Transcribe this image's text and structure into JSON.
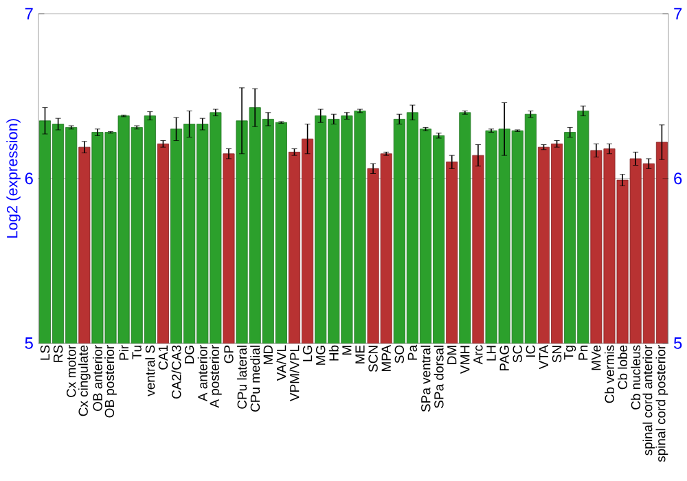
{
  "chart_data": {
    "type": "bar",
    "ylabel": "Log2 (expression)",
    "categories": [
      "LS",
      "RS",
      "Cx motor",
      "Cx cingulate",
      "OB anterior",
      "OB posterior",
      "Pir",
      "Tu",
      "ventral S",
      "CA1",
      "CA2/CA3",
      "DG",
      "A anterior",
      "A posterior",
      "GP",
      "CPu lateral",
      "CPu medial",
      "MD",
      "VA/VL",
      "VPM/VPL",
      "LG",
      "MG",
      "Hb",
      "M",
      "ME",
      "SCN",
      "MPA",
      "SO",
      "Pa",
      "SPa ventral",
      "SPa dorsal",
      "DM",
      "VMH",
      "Arc",
      "LH",
      "PAG",
      "SC",
      "IC",
      "VTA",
      "SN",
      "Tg",
      "Pn",
      "MVe",
      "Cb vermis",
      "Cb lobe",
      "Cb nucleus",
      "spinal cord anterior",
      "spinal cord posterior"
    ],
    "values": [
      6.35,
      6.33,
      6.31,
      6.19,
      6.28,
      6.28,
      6.38,
      6.31,
      6.38,
      6.21,
      6.3,
      6.33,
      6.33,
      6.4,
      6.15,
      6.35,
      6.43,
      6.36,
      6.34,
      6.16,
      6.24,
      6.38,
      6.36,
      6.38,
      6.41,
      6.06,
      6.15,
      6.36,
      6.4,
      6.3,
      6.26,
      6.1,
      6.4,
      6.14,
      6.29,
      6.3,
      6.29,
      6.39,
      6.19,
      6.21,
      6.28,
      6.41,
      6.17,
      6.18,
      5.99,
      6.12,
      6.09,
      6.22
    ],
    "errors": [
      0.08,
      0.035,
      0.01,
      0.035,
      0.02,
      0.005,
      0.005,
      0.01,
      0.025,
      0.02,
      0.07,
      0.08,
      0.035,
      0.02,
      0.03,
      0.2,
      0.115,
      0.04,
      0.005,
      0.02,
      0.09,
      0.04,
      0.03,
      0.02,
      0.01,
      0.03,
      0.01,
      0.03,
      0.045,
      0.01,
      0.015,
      0.04,
      0.01,
      0.065,
      0.01,
      0.16,
      0.005,
      0.02,
      0.015,
      0.02,
      0.03,
      0.03,
      0.04,
      0.03,
      0.035,
      0.04,
      0.03,
      0.105
    ],
    "colors": [
      "#2ca02c",
      "#2ca02c",
      "#2ca02c",
      "#b83232",
      "#2ca02c",
      "#2ca02c",
      "#2ca02c",
      "#2ca02c",
      "#2ca02c",
      "#b83232",
      "#2ca02c",
      "#2ca02c",
      "#2ca02c",
      "#2ca02c",
      "#b83232",
      "#2ca02c",
      "#2ca02c",
      "#2ca02c",
      "#2ca02c",
      "#b83232",
      "#b83232",
      "#2ca02c",
      "#2ca02c",
      "#2ca02c",
      "#2ca02c",
      "#b83232",
      "#b83232",
      "#2ca02c",
      "#2ca02c",
      "#2ca02c",
      "#2ca02c",
      "#b83232",
      "#2ca02c",
      "#b83232",
      "#2ca02c",
      "#2ca02c",
      "#2ca02c",
      "#2ca02c",
      "#b83232",
      "#b83232",
      "#2ca02c",
      "#2ca02c",
      "#b83232",
      "#b83232",
      "#b83232",
      "#b83232",
      "#b83232",
      "#b83232"
    ],
    "ylim": [
      5,
      7
    ],
    "yticks": [
      5,
      6,
      7
    ],
    "y2lim": [
      5,
      7
    ],
    "y2ticks": [
      5,
      6,
      7
    ],
    "grid": "y"
  }
}
